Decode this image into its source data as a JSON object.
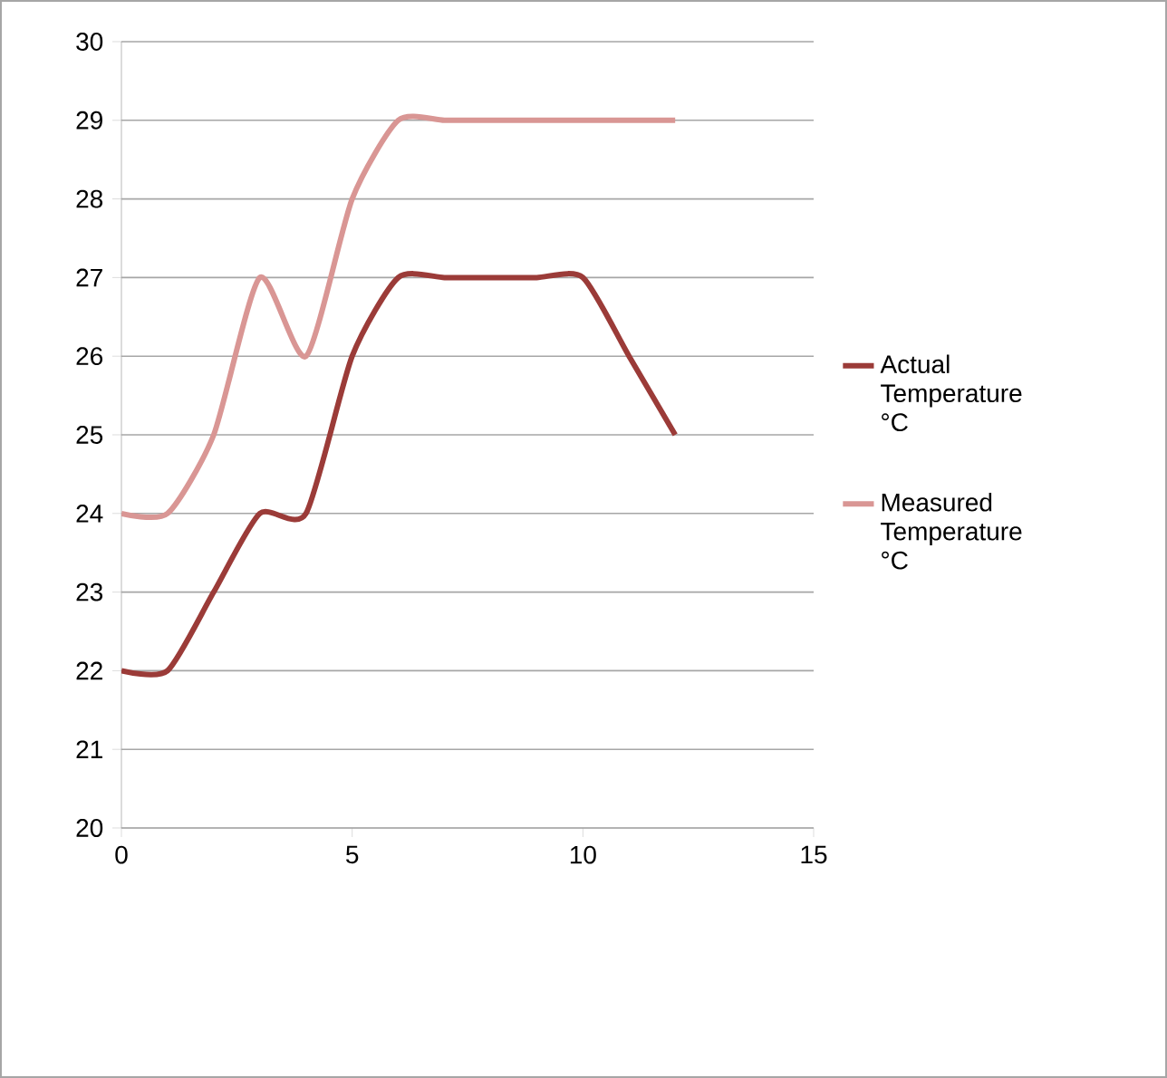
{
  "chart_data": {
    "type": "line",
    "x": [
      0,
      1,
      2,
      3,
      4,
      5,
      6,
      7,
      8,
      9,
      10,
      11,
      12
    ],
    "series": [
      {
        "name": "Actual Temperature °C",
        "color": "#9b3b38",
        "values": [
          22,
          22,
          23,
          24,
          24,
          26,
          27,
          27,
          27,
          27,
          27,
          26,
          25
        ]
      },
      {
        "name": "Measured Temperature °C",
        "color": "#d99694",
        "values": [
          24,
          24,
          25,
          27,
          26,
          28,
          29,
          29,
          29,
          29,
          29,
          29,
          29
        ]
      }
    ],
    "xlim": [
      0,
      15
    ],
    "xticks": [
      0,
      5,
      10,
      15
    ],
    "ylim": [
      20,
      30
    ],
    "yticks": [
      20,
      21,
      22,
      23,
      24,
      25,
      26,
      27,
      28,
      29,
      30
    ],
    "grid": "y",
    "legend": "right",
    "marker": "none",
    "line_style": "solid"
  }
}
